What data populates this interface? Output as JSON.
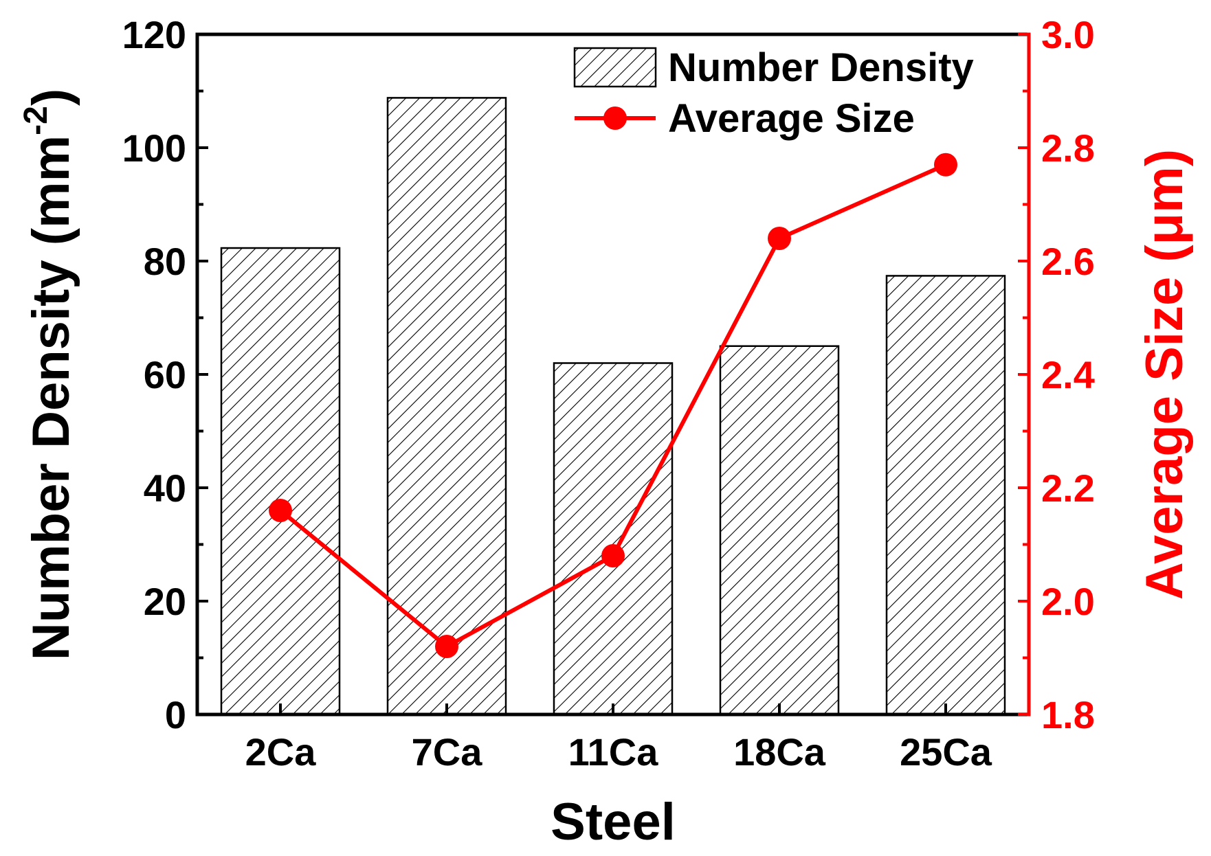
{
  "colors": {
    "bar_stroke": "#000000",
    "hatch": "#000000",
    "line": "#ff0000",
    "right_axis": "#ff0000",
    "left_axis": "#000000"
  },
  "chart_data": {
    "type": "bar",
    "title": "",
    "categories": [
      "2Ca",
      "7Ca",
      "11Ca",
      "18Ca",
      "25Ca"
    ],
    "xlabel": "Steel",
    "ylabel": "Number Density (mm",
    "ylabel_sup": "-2",
    "ylabel_close": ")",
    "ylim": [
      0,
      120
    ],
    "yticks": [
      0,
      20,
      40,
      60,
      80,
      100,
      120
    ],
    "y2label": "Average Size (μm)",
    "y2lim": [
      1.8,
      3.0
    ],
    "y2ticks": [
      "1.8",
      "2.0",
      "2.2",
      "2.4",
      "2.6",
      "2.8",
      "3.0"
    ],
    "legend_position": "top-right",
    "series": [
      {
        "name": "Number Density",
        "type": "bar",
        "axis": "left",
        "pattern": "hatched",
        "values": [
          82.3,
          108.8,
          62.0,
          65.0,
          77.4
        ]
      },
      {
        "name": "Average Size",
        "type": "line",
        "axis": "right",
        "marker": "circle",
        "values": [
          2.16,
          1.92,
          2.08,
          2.64,
          2.77
        ]
      }
    ]
  }
}
